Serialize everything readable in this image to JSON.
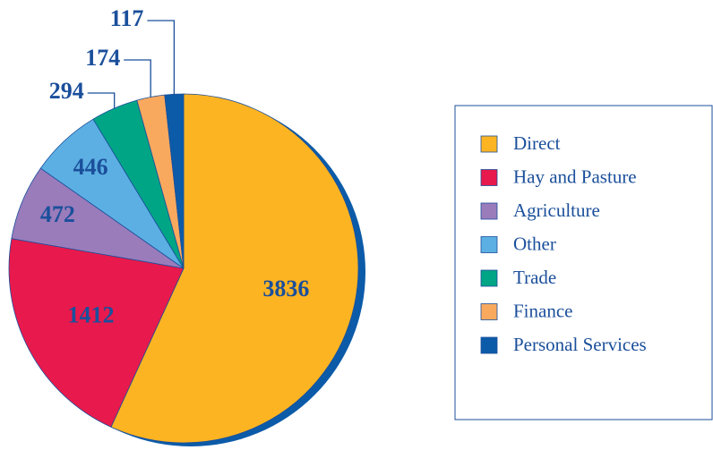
{
  "chart_data": {
    "type": "pie",
    "categories": [
      "Direct",
      "Hay and Pasture",
      "Agriculture",
      "Other",
      "Trade",
      "Finance",
      "Personal Services"
    ],
    "values": [
      3836,
      1412,
      472,
      446,
      294,
      174,
      117
    ],
    "colors": [
      "#fcb422",
      "#e8194c",
      "#9a7cbb",
      "#5cafe2",
      "#00a586",
      "#f9a95e",
      "#0c5ba8"
    ],
    "legend": "right"
  }
}
